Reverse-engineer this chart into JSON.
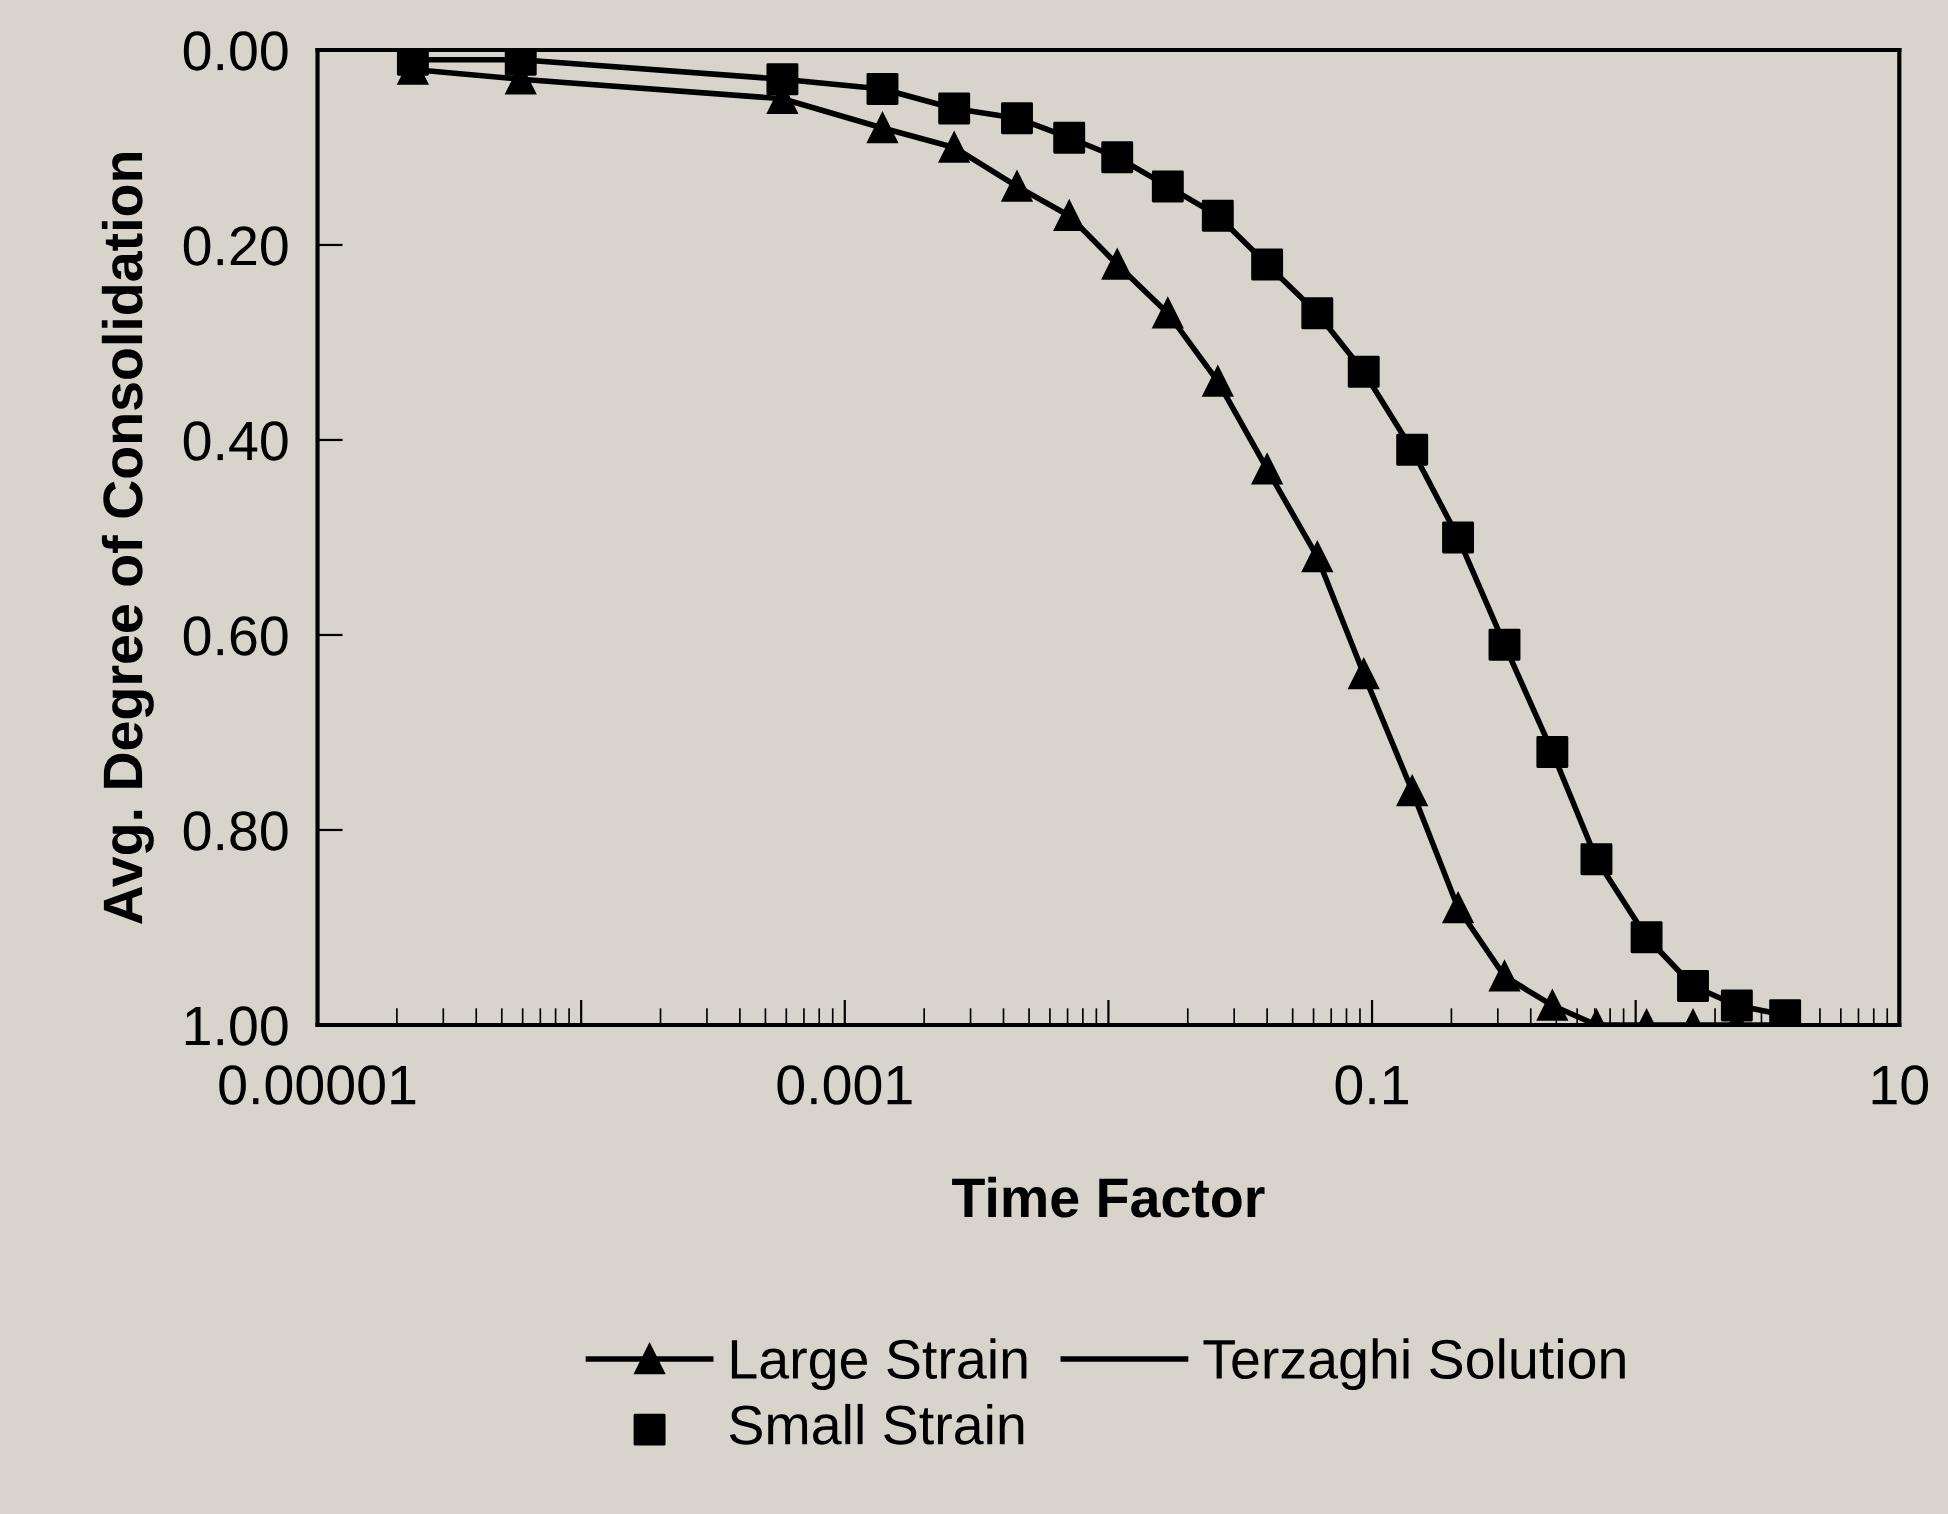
{
  "chart_data": {
    "type": "line",
    "xlabel": "Time Factor",
    "ylabel": "Avg. Degree of Consolidation",
    "x": [
      2.3e-05,
      5.9e-05,
      0.00058,
      0.00139,
      0.0026,
      0.0045,
      0.0071,
      0.0108,
      0.0168,
      0.026,
      0.04,
      0.062,
      0.093,
      0.142,
      0.212,
      0.318,
      0.483,
      0.71,
      1.1,
      1.65,
      2.42,
      3.69
    ],
    "series": [
      {
        "name": "Large Strain",
        "color": "#000000",
        "marker": "triangle",
        "values": [
          0.02,
          0.03,
          0.05,
          0.08,
          0.1,
          0.14,
          0.17,
          0.22,
          0.27,
          0.34,
          0.43,
          0.52,
          0.64,
          0.76,
          0.88,
          0.95,
          0.98,
          1.0,
          1.0,
          1.0,
          1.0,
          1.0
        ]
      },
      {
        "name": "Small Strain",
        "color": "#000000",
        "type": "scatter",
        "marker": "square",
        "values": [
          0.01,
          0.01,
          0.03,
          0.04,
          0.06,
          0.07,
          0.09,
          0.11,
          0.14,
          0.17,
          0.22,
          0.27,
          0.33,
          0.41,
          0.5,
          0.61,
          0.72,
          0.83,
          0.91,
          0.96,
          0.98,
          0.99
        ]
      },
      {
        "name": "Terzaghi Solution",
        "color": "#000000",
        "type": "line",
        "marker": "none",
        "values": [
          0.01,
          0.01,
          0.03,
          0.04,
          0.06,
          0.07,
          0.09,
          0.11,
          0.14,
          0.17,
          0.22,
          0.27,
          0.33,
          0.41,
          0.5,
          0.61,
          0.72,
          0.83,
          0.91,
          0.96,
          0.98,
          0.99
        ]
      }
    ],
    "log": "x",
    "xlim": [
      1e-05,
      10
    ],
    "xticks": [
      {
        "value": 1e-05,
        "label": "0.00001"
      },
      {
        "value": 0.0001,
        "label": null
      },
      {
        "value": 0.001,
        "label": "0.001"
      },
      {
        "value": 0.01,
        "label": null
      },
      {
        "value": 0.1,
        "label": "0.1"
      },
      {
        "value": 1,
        "label": null
      },
      {
        "value": 10,
        "label": "10"
      }
    ],
    "ylim": [
      1.0,
      0.0
    ],
    "yticks": [
      {
        "value": 0,
        "label": "0.00"
      },
      {
        "value": 0.2,
        "label": "0.20"
      },
      {
        "value": 0.4,
        "label": "0.40"
      },
      {
        "value": 0.6,
        "label": "0.60"
      },
      {
        "value": 0.8,
        "label": "0.80"
      },
      {
        "value": 1.0,
        "label": "1.00"
      }
    ],
    "grid": false,
    "legend": "bottom"
  }
}
